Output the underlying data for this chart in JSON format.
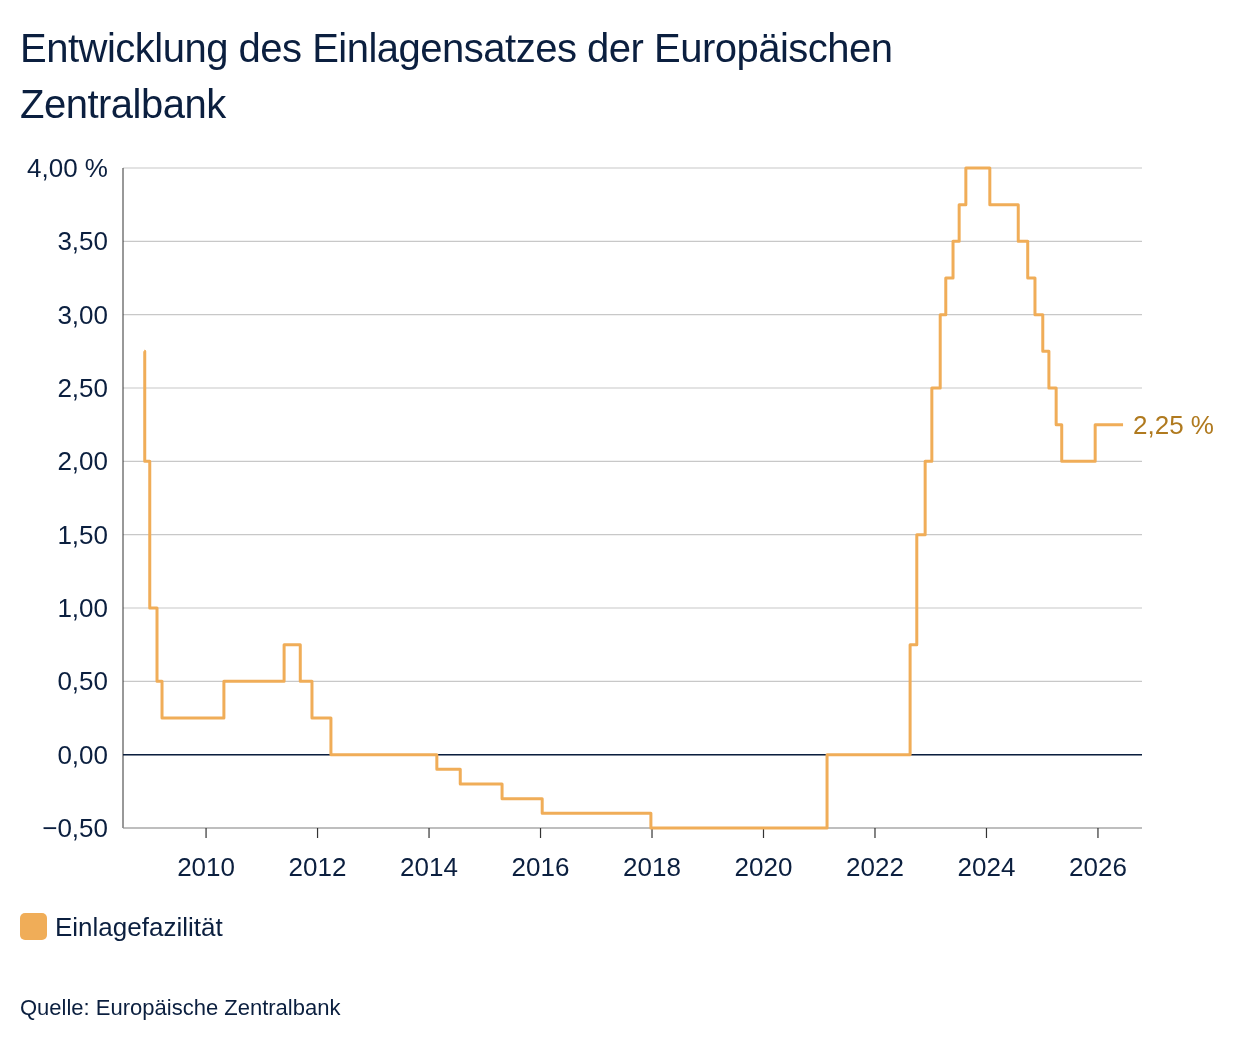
{
  "chart_data": {
    "type": "step",
    "title": "Entwicklung des Einlagensatzes der Europäischen Zentralbank",
    "x": [
      2008.89,
      2008.9,
      2008.99,
      2009.12,
      2009.21,
      2010.32,
      2011.4,
      2011.69,
      2011.9,
      2012.24,
      2014.14,
      2014.56,
      2015.31,
      2016.03,
      2017.98,
      2021.14,
      2022.63,
      2022.75,
      2022.9,
      2023.02,
      2023.17,
      2023.27,
      2023.4,
      2023.51,
      2023.63,
      2024.06,
      2024.57,
      2024.74,
      2024.87,
      2025.01,
      2025.12,
      2025.25,
      2025.35,
      2025.95,
      2026.45
    ],
    "series": [
      {
        "name": "Einlagefazilität",
        "color": "#f0ad58",
        "values": [
          2.75,
          2.0,
          1.0,
          0.5,
          0.25,
          0.5,
          0.75,
          0.5,
          0.25,
          0,
          -0.1,
          -0.2,
          -0.3,
          -0.4,
          -0.5,
          0,
          0.75,
          1.5,
          2.0,
          2.5,
          3.0,
          3.25,
          3.5,
          3.75,
          4.0,
          3.75,
          3.5,
          3.25,
          3.0,
          2.75,
          2.5,
          2.25,
          2.0,
          2.25,
          2.25
        ]
      }
    ],
    "xlim": [
      2008.51,
      2026.79
    ],
    "xticks": [
      2010,
      2012,
      2014,
      2016,
      2018,
      2020,
      2022,
      2024,
      2026
    ],
    "ylim": [
      -0.5,
      4
    ],
    "yticks": [
      {
        "value": -0.5,
        "label": "−0,50"
      },
      {
        "value": 0,
        "label": "0,00"
      },
      {
        "value": 0.5,
        "label": "0,50"
      },
      {
        "value": 1,
        "label": "1,00"
      },
      {
        "value": 1.5,
        "label": "1,50"
      },
      {
        "value": 2,
        "label": "2,00"
      },
      {
        "value": 2.5,
        "label": "2,50"
      },
      {
        "value": 3,
        "label": "3,00"
      },
      {
        "value": 3.5,
        "label": "3,50"
      },
      {
        "value": 4,
        "label": "4,00 %"
      }
    ],
    "grid": "y",
    "legend": "bottom left",
    "marker": "none",
    "line_style": "solid",
    "ref_lines": [
      {
        "axis": "y",
        "value": 0,
        "color": "#0b1f3f"
      }
    ],
    "annotations": [
      {
        "text": "2,25 %",
        "x": 2026.45,
        "y": 2.25
      },
      "Quelle: Europäische Zentralbank"
    ]
  }
}
